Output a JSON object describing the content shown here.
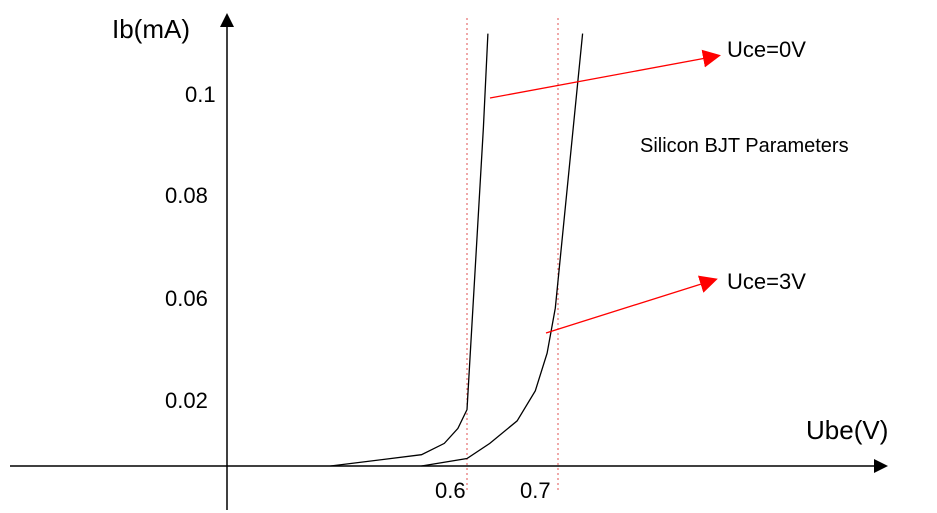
{
  "chart_data": {
    "type": "line",
    "title": "",
    "xlabel": "Ube(V)",
    "ylabel": "Ib(mA)",
    "x_ticks": [
      {
        "value": 0.6,
        "label": "0.6"
      },
      {
        "value": 0.7,
        "label": "0.7"
      }
    ],
    "y_ticks": [
      {
        "value": 0.02,
        "label": "0.02"
      },
      {
        "value": 0.06,
        "label": "0.06"
      },
      {
        "value": 0.08,
        "label": "0.08"
      },
      {
        "value": 0.1,
        "label": "0.1"
      }
    ],
    "reference_lines_x": [
      0.6,
      0.7
    ],
    "series": [
      {
        "name": "Uce=0V",
        "points": [
          [
            0.45,
            0.0
          ],
          [
            0.55,
            0.003
          ],
          [
            0.575,
            0.006
          ],
          [
            0.59,
            0.01
          ],
          [
            0.6,
            0.015
          ],
          [
            0.618,
            0.09
          ],
          [
            0.623,
            0.115
          ]
        ]
      },
      {
        "name": "Uce=3V",
        "points": [
          [
            0.55,
            0.0
          ],
          [
            0.6,
            0.002
          ],
          [
            0.625,
            0.006
          ],
          [
            0.655,
            0.012
          ],
          [
            0.675,
            0.02
          ],
          [
            0.688,
            0.03
          ],
          [
            0.697,
            0.042
          ],
          [
            0.727,
            0.115
          ]
        ]
      }
    ],
    "annotations": [
      {
        "text": "Uce=0V",
        "series": "Uce=0V"
      },
      {
        "text": "Uce=3V",
        "series": "Uce=3V"
      },
      {
        "text": "Silicon BJT Parameters"
      }
    ],
    "colors": {
      "axes": "#000000",
      "curves": "#000000",
      "arrows": "#ff0000",
      "reference_lines": "#e05050"
    }
  }
}
